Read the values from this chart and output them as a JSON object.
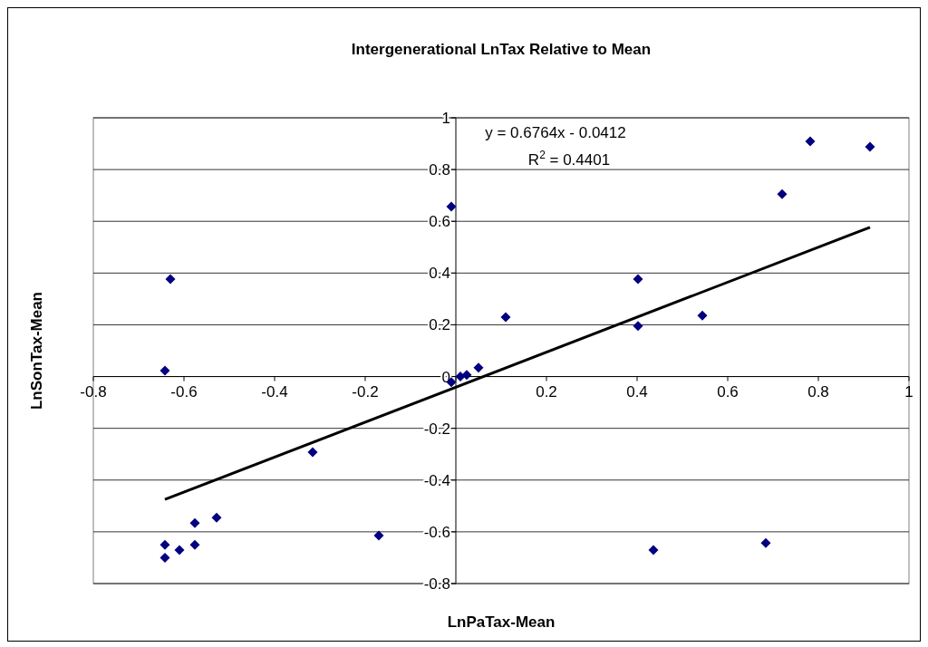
{
  "chart_data": {
    "type": "scatter",
    "title": "Intergenerational LnTax Relative to Mean",
    "xlabel": "LnPaTax-Mean",
    "ylabel": "LnSonTax-Mean",
    "xlim": [
      -0.8,
      1
    ],
    "xticks": [
      -0.8,
      -0.6,
      -0.4,
      -0.2,
      {
        "value": 0,
        "label": null
      },
      0.2,
      0.4,
      0.6,
      0.8,
      1
    ],
    "ylim": [
      -0.8,
      1
    ],
    "yticks": [
      -0.8,
      -0.6,
      -0.4,
      -0.2,
      0,
      0.2,
      0.4,
      0.6,
      0.8,
      1
    ],
    "grid": "y",
    "marker": "diamond",
    "annotations": [
      "y = 0.6764x - 0.0412",
      "R$^{2}$ = 0.4401"
    ],
    "series": [
      {
        "color": "#000080",
        "x": [
          -0.01,
          0.782,
          0.914,
          0.72,
          0.402,
          0.402,
          0.544,
          0.11,
          0.05,
          0.024,
          0.01,
          -0.01,
          -0.63,
          -0.642,
          -0.316,
          -0.17,
          -0.528,
          -0.576,
          -0.576,
          -0.61,
          -0.642,
          -0.642,
          0.436,
          0.684
        ],
        "values": [
          0.657,
          0.909,
          0.888,
          0.705,
          0.377,
          0.195,
          0.236,
          0.23,
          0.034,
          0.006,
          0.0,
          -0.022,
          0.377,
          0.023,
          -0.292,
          -0.614,
          -0.545,
          -0.566,
          -0.65,
          -0.67,
          -0.65,
          -0.7,
          -0.67,
          -0.643
        ]
      },
      {
        "type": "line",
        "color": "#000000",
        "marker": "none",
        "x": [
          -0.642,
          0.914
        ],
        "values": [
          -0.475,
          0.577
        ]
      }
    ]
  }
}
